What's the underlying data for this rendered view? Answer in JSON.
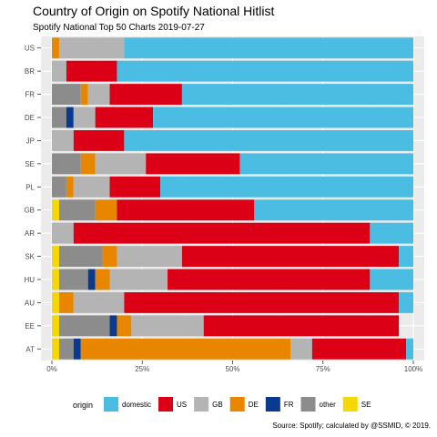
{
  "chart_data": {
    "type": "bar",
    "orientation": "horizontal",
    "stacked": "percent",
    "title": "Country of Origin on Spotify National Hitlist",
    "subtitle": "Spotify National Top 50 Charts 2019-07-27",
    "caption": "Source: Spotify; calculated by @SSMID, © 2019.",
    "legend_title": "origin",
    "legend_position": "bottom",
    "grid": true,
    "xlim": [
      0,
      100
    ],
    "x_ticks": [
      "0%",
      "25%",
      "50%",
      "75%",
      "100%"
    ],
    "categories": [
      "US",
      "BR",
      "FR",
      "DE",
      "JP",
      "SE",
      "PL",
      "GB",
      "AR",
      "SK",
      "HU",
      "AU",
      "EE",
      "AT"
    ],
    "series": [
      {
        "name": "SE",
        "color": "#F5D800",
        "values": [
          0,
          0,
          0,
          0,
          0,
          0,
          0,
          2,
          0,
          2,
          2,
          2,
          2,
          2
        ]
      },
      {
        "name": "other",
        "color": "#8C8C8C",
        "values": [
          0,
          0,
          8,
          4,
          0,
          8,
          4,
          10,
          0,
          12,
          8,
          0,
          14,
          4
        ]
      },
      {
        "name": "FR",
        "color": "#0A3990",
        "values": [
          0,
          0,
          0,
          2,
          0,
          0,
          0,
          0,
          0,
          0,
          2,
          0,
          2,
          2
        ]
      },
      {
        "name": "DE",
        "color": "#E88600",
        "values": [
          2,
          0,
          2,
          0,
          0,
          4,
          2,
          6,
          0,
          4,
          4,
          4,
          4,
          58
        ]
      },
      {
        "name": "GB",
        "color": "#B4B4B4",
        "values": [
          18,
          4,
          6,
          6,
          6,
          14,
          10,
          0,
          6,
          18,
          16,
          14,
          20,
          6
        ]
      },
      {
        "name": "US",
        "color": "#DC0016",
        "values": [
          0,
          14,
          20,
          16,
          14,
          26,
          14,
          38,
          82,
          60,
          56,
          76,
          54,
          26
        ]
      },
      {
        "name": "domestic",
        "color": "#4BBDE3",
        "values": [
          80,
          82,
          64,
          72,
          80,
          48,
          70,
          44,
          12,
          4,
          12,
          4,
          0,
          2
        ]
      }
    ],
    "legend_order": [
      "domestic",
      "US",
      "GB",
      "DE",
      "FR",
      "other",
      "SE"
    ]
  }
}
